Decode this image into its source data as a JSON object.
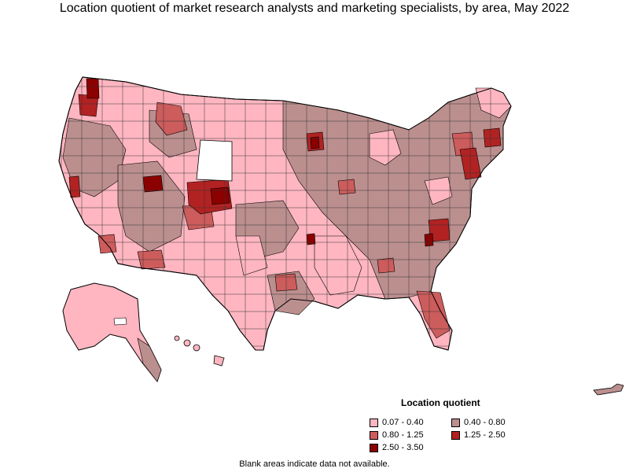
{
  "title": "Location quotient of market research analysts and marketing specialists, by area, May 2022",
  "legend": {
    "title": "Location quotient",
    "items": [
      {
        "label": "0.07 - 0.40",
        "color": "#ffb6c1"
      },
      {
        "label": "0.40 - 0.80",
        "color": "#bc8f8f"
      },
      {
        "label": "0.80 - 1.25",
        "color": "#cd5c5c"
      },
      {
        "label": "1.25 - 2.50",
        "color": "#b22222"
      },
      {
        "label": "2.50 - 3.50",
        "color": "#8b0000"
      }
    ]
  },
  "note": "Blank areas indicate data not available.",
  "colors": {
    "low": "#ffb6c1",
    "mid_low": "#bc8f8f",
    "mid": "#cd5c5c",
    "mid_high": "#b22222",
    "high": "#8b0000",
    "na": "#ffffff",
    "border": "#000000"
  }
}
